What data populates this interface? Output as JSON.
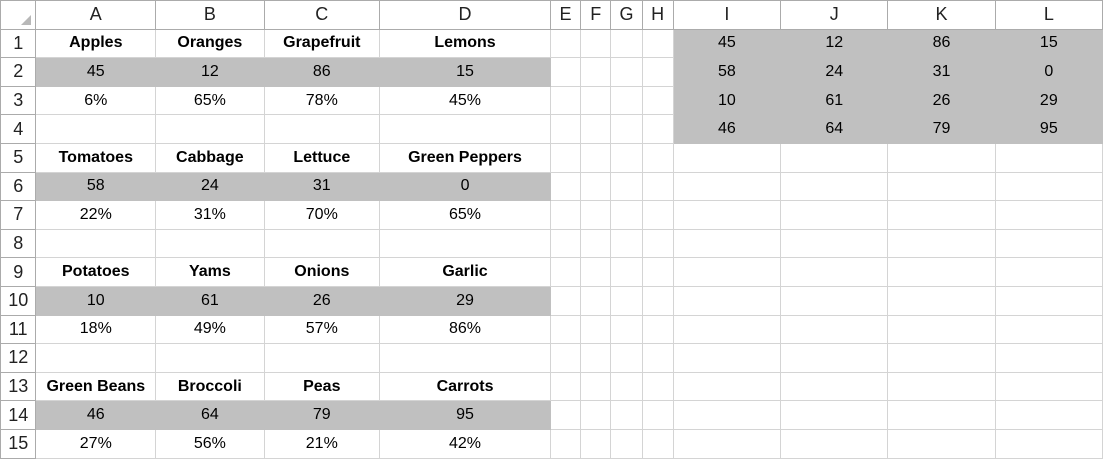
{
  "col_headers": [
    "A",
    "B",
    "C",
    "D",
    "E",
    "F",
    "G",
    "H",
    "I",
    "J",
    "K",
    "L"
  ],
  "row_numbers": [
    "1",
    "2",
    "3",
    "4",
    "5",
    "6",
    "7",
    "8",
    "9",
    "10",
    "11",
    "12",
    "13",
    "14",
    "15"
  ],
  "groups": [
    {
      "names": [
        "Apples",
        "Oranges",
        "Grapefruit",
        "Lemons"
      ],
      "values": [
        "45",
        "12",
        "86",
        "15"
      ],
      "percents": [
        "6%",
        "65%",
        "78%",
        "45%"
      ]
    },
    {
      "names": [
        "Tomatoes",
        "Cabbage",
        "Lettuce",
        "Green Peppers"
      ],
      "values": [
        "58",
        "24",
        "31",
        "0"
      ],
      "percents": [
        "22%",
        "31%",
        "70%",
        "65%"
      ]
    },
    {
      "names": [
        "Potatoes",
        "Yams",
        "Onions",
        "Garlic"
      ],
      "values": [
        "10",
        "61",
        "26",
        "29"
      ],
      "percents": [
        "18%",
        "49%",
        "57%",
        "86%"
      ]
    },
    {
      "names": [
        "Green Beans",
        "Broccoli",
        "Peas",
        "Carrots"
      ],
      "values": [
        "46",
        "64",
        "79",
        "95"
      ],
      "percents": [
        "27%",
        "56%",
        "21%",
        "42%"
      ]
    }
  ],
  "summary": [
    [
      "45",
      "12",
      "86",
      "15"
    ],
    [
      "58",
      "24",
      "31",
      "0"
    ],
    [
      "10",
      "61",
      "26",
      "29"
    ],
    [
      "46",
      "64",
      "79",
      "95"
    ]
  ],
  "colors": {
    "shade": "#c0c0c0",
    "grid": "#d4d4d4",
    "header_border": "#ababab"
  }
}
